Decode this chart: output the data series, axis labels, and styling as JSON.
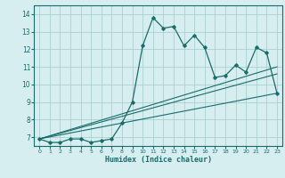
{
  "xlabel": "Humidex (Indice chaleur)",
  "ylabel": "",
  "bg_color": "#d6eef0",
  "line_color": "#1a6b6b",
  "grid_color": "#aacfcf",
  "xlim": [
    -0.5,
    23.5
  ],
  "ylim": [
    6.5,
    14.5
  ],
  "yticks": [
    7,
    8,
    9,
    10,
    11,
    12,
    13,
    14
  ],
  "xticks": [
    0,
    1,
    2,
    3,
    4,
    5,
    6,
    7,
    8,
    9,
    10,
    11,
    12,
    13,
    14,
    15,
    16,
    17,
    18,
    19,
    20,
    21,
    22,
    23
  ],
  "main_x": [
    0,
    1,
    2,
    3,
    4,
    5,
    6,
    7,
    8,
    9,
    10,
    11,
    12,
    13,
    14,
    15,
    16,
    17,
    18,
    19,
    20,
    21,
    22,
    23
  ],
  "main_y": [
    6.9,
    6.7,
    6.7,
    6.9,
    6.9,
    6.7,
    6.8,
    6.9,
    7.8,
    9.0,
    12.2,
    13.8,
    13.2,
    13.3,
    12.2,
    12.8,
    12.1,
    10.4,
    10.5,
    11.1,
    10.7,
    12.1,
    11.8,
    9.5
  ],
  "line1_x": [
    0,
    23
  ],
  "line1_y": [
    6.9,
    9.5
  ],
  "line2_x": [
    0,
    23
  ],
  "line2_y": [
    6.9,
    10.6
  ],
  "line3_x": [
    0,
    23
  ],
  "line3_y": [
    6.9,
    11.0
  ]
}
